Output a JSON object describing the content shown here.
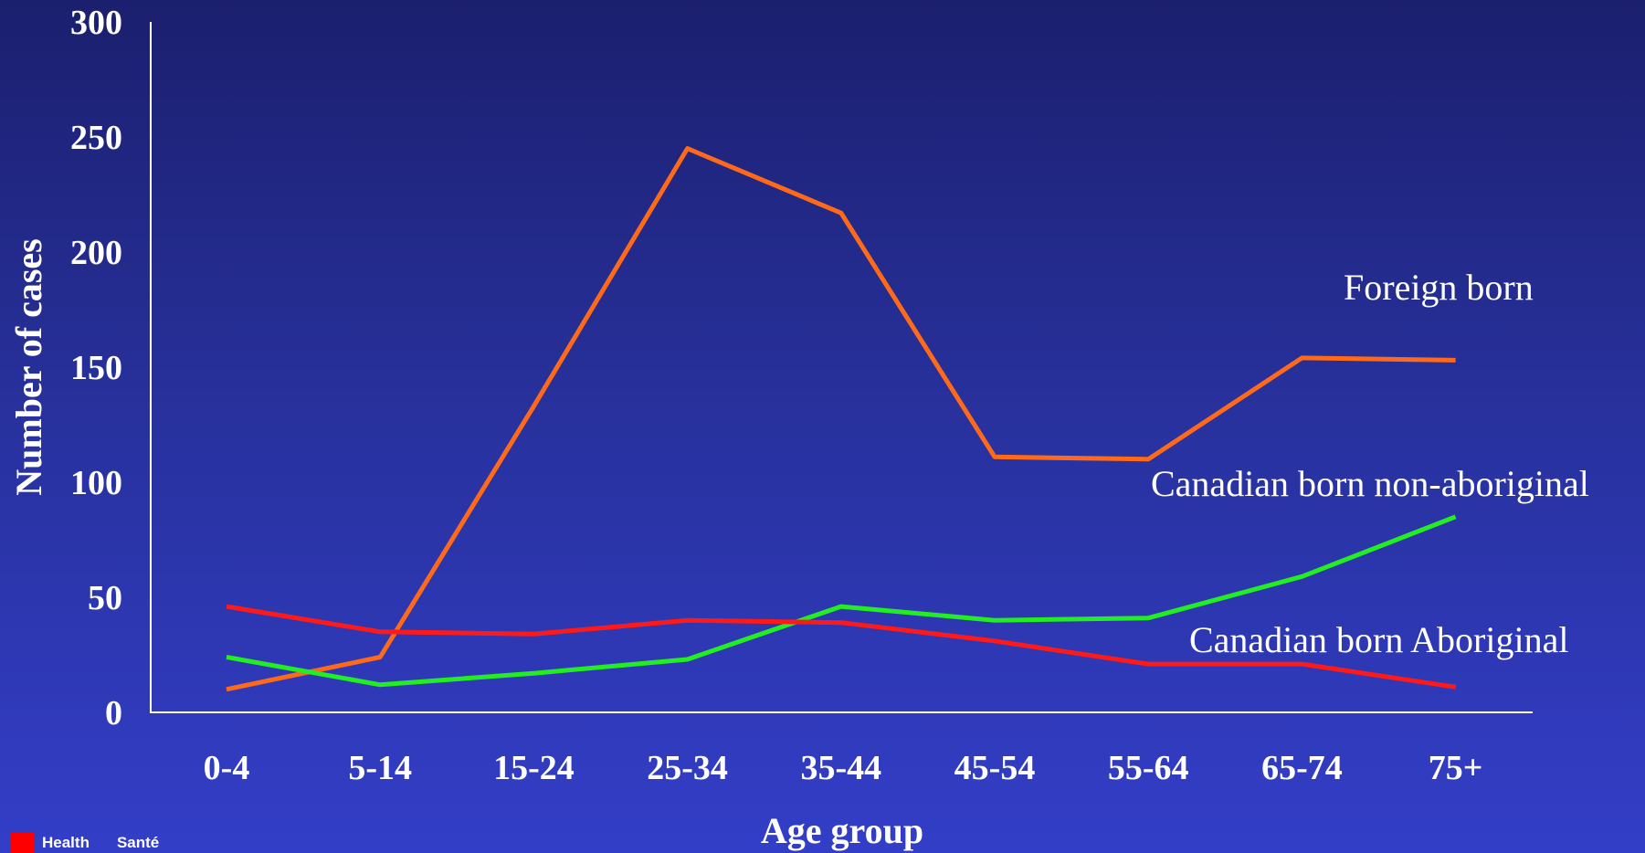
{
  "chart_data": {
    "type": "line",
    "xlabel": "Age group",
    "ylabel": "Number of cases",
    "categories": [
      "0-4",
      "5-14",
      "15-24",
      "25-34",
      "35-44",
      "45-54",
      "55-64",
      "65-74",
      "75+"
    ],
    "yticks": [
      "0",
      "50",
      "100",
      "150",
      "200",
      "250",
      "300"
    ],
    "ylim": [
      0,
      300
    ],
    "grid": false,
    "series": [
      {
        "name": "Foreign born",
        "color": "#ff6a1a",
        "values": [
          10,
          24,
          133,
          245,
          217,
          111,
          110,
          154,
          153
        ]
      },
      {
        "name": "Canadian born non-aboriginal",
        "color": "#22ee22",
        "values": [
          24,
          12,
          17,
          23,
          46,
          40,
          41,
          59,
          85
        ]
      },
      {
        "name": "Canadian born Aboriginal",
        "color": "#ff1a1a",
        "values": [
          46,
          35,
          34,
          40,
          39,
          31,
          21,
          21,
          11
        ]
      }
    ]
  },
  "footer": {
    "logo_en": "Health",
    "logo_fr": "Santé"
  }
}
